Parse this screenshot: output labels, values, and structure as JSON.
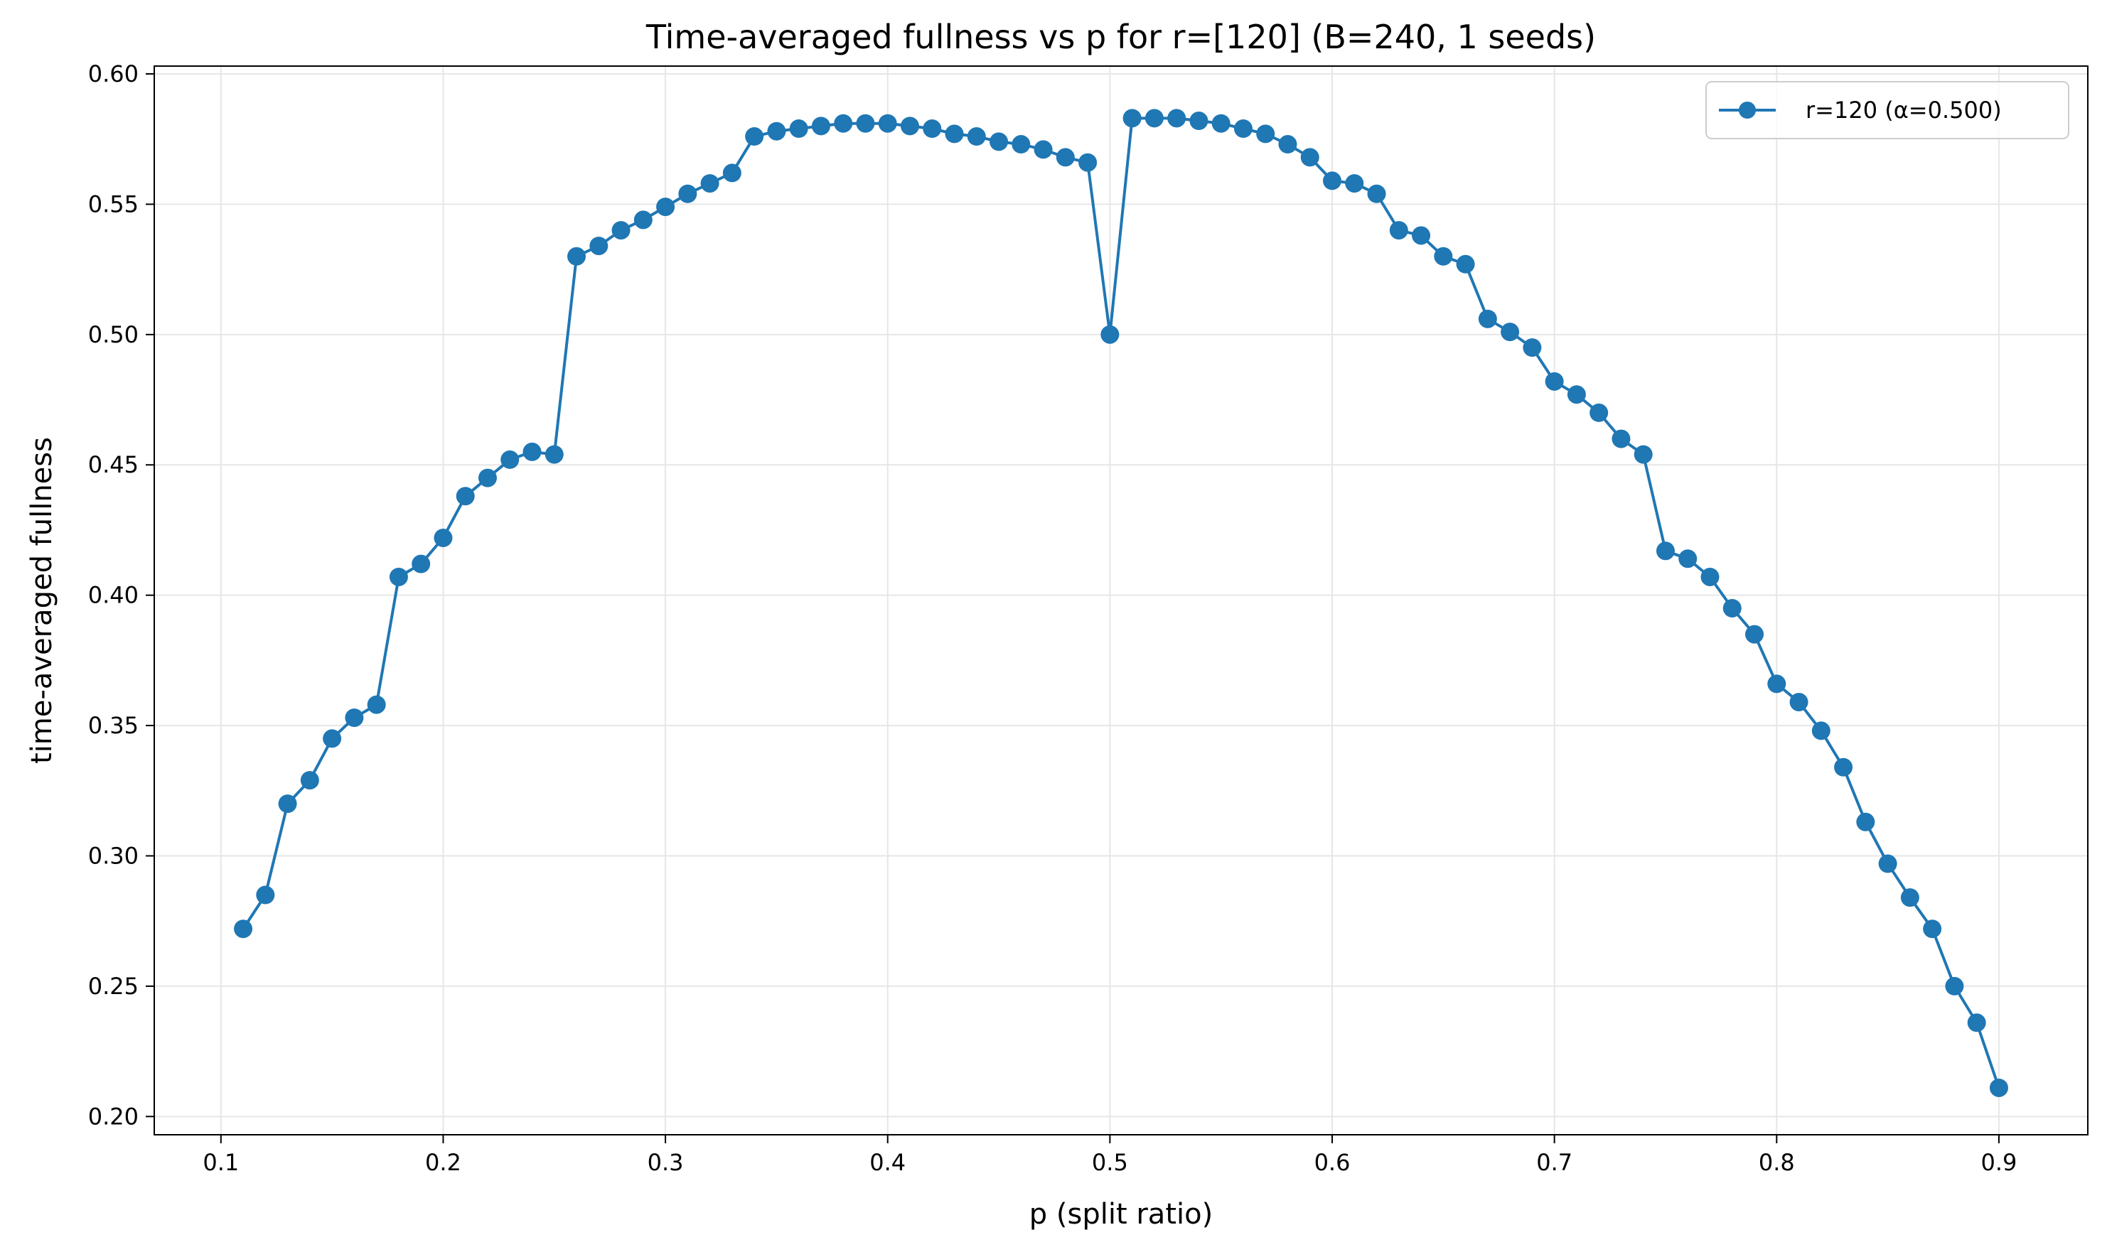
{
  "chart_data": {
    "type": "line",
    "title": "Time-averaged fullness vs p for r=[120] (B=240, 1 seeds)",
    "xlabel": "p (split ratio)",
    "ylabel": "time-averaged fullness",
    "xlim": [
      0.07,
      0.94
    ],
    "ylim": [
      0.193,
      0.603
    ],
    "xticks": [
      0.1,
      0.2,
      0.3,
      0.4,
      0.5,
      0.6,
      0.7,
      0.8,
      0.9
    ],
    "xtick_labels": [
      "0.1",
      "0.2",
      "0.3",
      "0.4",
      "0.5",
      "0.6",
      "0.7",
      "0.8",
      "0.9"
    ],
    "yticks": [
      0.2,
      0.25,
      0.3,
      0.35,
      0.4,
      0.45,
      0.5,
      0.55,
      0.6
    ],
    "ytick_labels": [
      "0.20",
      "0.25",
      "0.30",
      "0.35",
      "0.40",
      "0.45",
      "0.50",
      "0.55",
      "0.60"
    ],
    "grid": true,
    "legend_position": "top-right",
    "series": [
      {
        "name": "r=120 (α=0.500)",
        "color": "#1f77b4",
        "marker": "circle",
        "x": [
          0.11,
          0.12,
          0.13,
          0.14,
          0.15,
          0.16,
          0.17,
          0.18,
          0.19,
          0.2,
          0.21,
          0.22,
          0.23,
          0.24,
          0.25,
          0.26,
          0.27,
          0.28,
          0.29,
          0.3,
          0.31,
          0.32,
          0.33,
          0.34,
          0.35,
          0.36,
          0.37,
          0.38,
          0.39,
          0.4,
          0.41,
          0.42,
          0.43,
          0.44,
          0.45,
          0.46,
          0.47,
          0.48,
          0.49,
          0.5,
          0.51,
          0.52,
          0.53,
          0.54,
          0.55,
          0.56,
          0.57,
          0.58,
          0.59,
          0.6,
          0.61,
          0.62,
          0.63,
          0.64,
          0.65,
          0.66,
          0.67,
          0.68,
          0.69,
          0.7,
          0.71,
          0.72,
          0.73,
          0.74,
          0.75,
          0.76,
          0.77,
          0.78,
          0.79,
          0.8,
          0.81,
          0.82,
          0.83,
          0.84,
          0.85,
          0.86,
          0.87,
          0.88,
          0.89,
          0.9
        ],
        "y": [
          0.272,
          0.285,
          0.32,
          0.329,
          0.345,
          0.353,
          0.358,
          0.407,
          0.412,
          0.422,
          0.438,
          0.445,
          0.452,
          0.455,
          0.454,
          0.53,
          0.534,
          0.54,
          0.544,
          0.549,
          0.554,
          0.558,
          0.562,
          0.576,
          0.578,
          0.579,
          0.58,
          0.581,
          0.581,
          0.581,
          0.58,
          0.579,
          0.577,
          0.576,
          0.574,
          0.573,
          0.571,
          0.568,
          0.566,
          0.5,
          0.583,
          0.583,
          0.583,
          0.582,
          0.581,
          0.579,
          0.577,
          0.573,
          0.568,
          0.559,
          0.558,
          0.554,
          0.54,
          0.538,
          0.53,
          0.527,
          0.506,
          0.501,
          0.495,
          0.482,
          0.477,
          0.47,
          0.46,
          0.454,
          0.417,
          0.414,
          0.407,
          0.395,
          0.385,
          0.366,
          0.359,
          0.348,
          0.334,
          0.313,
          0.297,
          0.284,
          0.272,
          0.25,
          0.236,
          0.211
        ]
      }
    ]
  }
}
